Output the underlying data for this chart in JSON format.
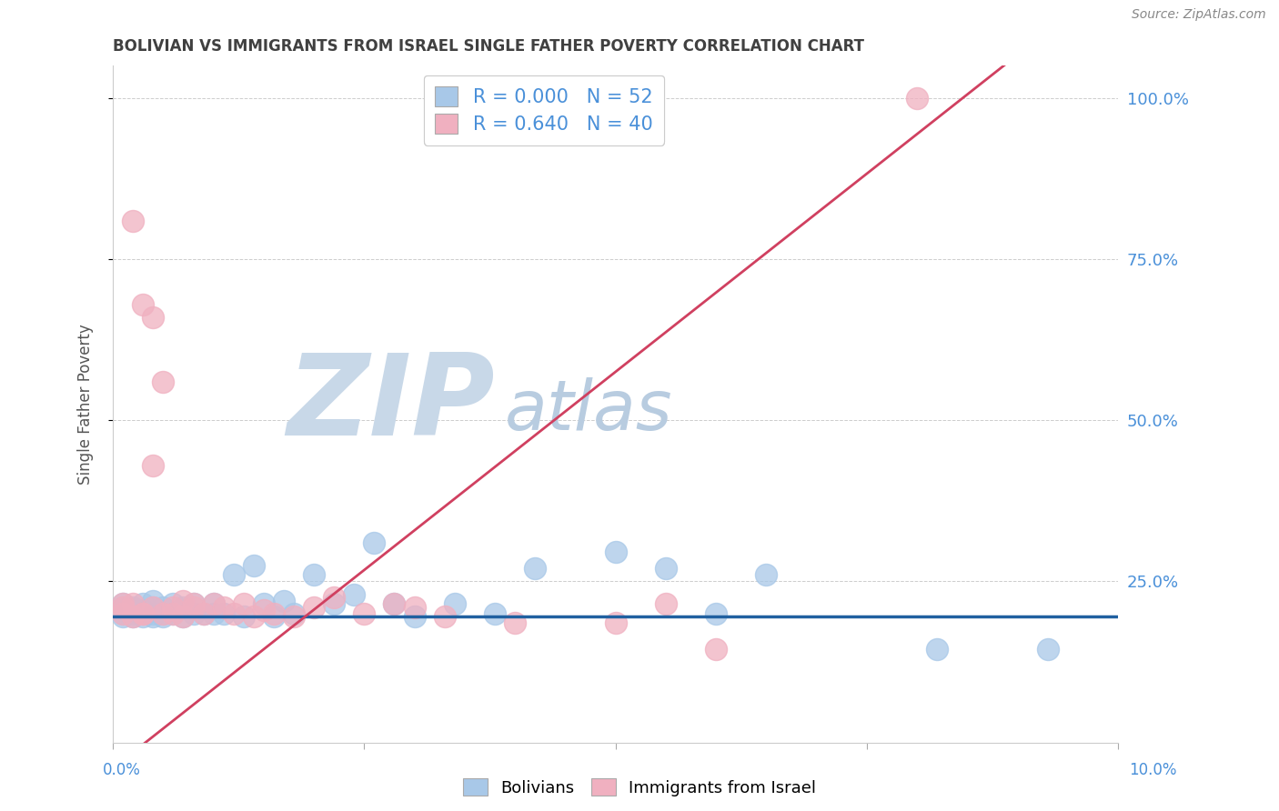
{
  "title": "BOLIVIAN VS IMMIGRANTS FROM ISRAEL SINGLE FATHER POVERTY CORRELATION CHART",
  "source": "Source: ZipAtlas.com",
  "ylabel": "Single Father Poverty",
  "legend_bottom": [
    "Bolivians",
    "Immigrants from Israel"
  ],
  "legend_top": {
    "blue": {
      "R": "0.000",
      "N": "52"
    },
    "pink": {
      "R": "0.640",
      "N": "40"
    }
  },
  "blue_color": "#a8c8e8",
  "pink_color": "#f0b0c0",
  "blue_line_color": "#2060a0",
  "pink_line_color": "#d04060",
  "watermark_zip_color": "#c8d8e8",
  "watermark_atlas_color": "#b8cce0",
  "title_color": "#404040",
  "axis_label_color": "#4a90d9",
  "xmin": 0.0,
  "xmax": 0.1,
  "ymin": 0.0,
  "ymax": 1.05,
  "blue_scatter_x": [
    0.001,
    0.001,
    0.001,
    0.001,
    0.001,
    0.002,
    0.002,
    0.002,
    0.002,
    0.003,
    0.003,
    0.003,
    0.003,
    0.004,
    0.004,
    0.004,
    0.004,
    0.005,
    0.005,
    0.005,
    0.006,
    0.006,
    0.007,
    0.007,
    0.008,
    0.008,
    0.009,
    0.01,
    0.01,
    0.011,
    0.012,
    0.013,
    0.014,
    0.015,
    0.016,
    0.017,
    0.018,
    0.02,
    0.022,
    0.024,
    0.026,
    0.028,
    0.03,
    0.034,
    0.038,
    0.042,
    0.05,
    0.055,
    0.06,
    0.065,
    0.082,
    0.093
  ],
  "blue_scatter_y": [
    0.195,
    0.2,
    0.205,
    0.21,
    0.215,
    0.195,
    0.2,
    0.205,
    0.21,
    0.195,
    0.2,
    0.205,
    0.215,
    0.195,
    0.2,
    0.21,
    0.22,
    0.195,
    0.2,
    0.21,
    0.2,
    0.215,
    0.195,
    0.21,
    0.2,
    0.215,
    0.2,
    0.2,
    0.215,
    0.2,
    0.26,
    0.195,
    0.275,
    0.215,
    0.195,
    0.22,
    0.2,
    0.26,
    0.215,
    0.23,
    0.31,
    0.215,
    0.195,
    0.215,
    0.2,
    0.27,
    0.295,
    0.27,
    0.2,
    0.26,
    0.145,
    0.145
  ],
  "pink_scatter_x": [
    0.001,
    0.001,
    0.001,
    0.002,
    0.002,
    0.002,
    0.003,
    0.003,
    0.003,
    0.004,
    0.004,
    0.004,
    0.005,
    0.005,
    0.006,
    0.006,
    0.007,
    0.007,
    0.008,
    0.008,
    0.009,
    0.01,
    0.011,
    0.012,
    0.013,
    0.014,
    0.015,
    0.016,
    0.018,
    0.02,
    0.022,
    0.025,
    0.028,
    0.03,
    0.033,
    0.04,
    0.05,
    0.055,
    0.06,
    0.08
  ],
  "pink_scatter_y": [
    0.2,
    0.21,
    0.215,
    0.195,
    0.81,
    0.215,
    0.2,
    0.68,
    0.2,
    0.21,
    0.66,
    0.43,
    0.2,
    0.56,
    0.21,
    0.2,
    0.22,
    0.195,
    0.21,
    0.215,
    0.2,
    0.215,
    0.21,
    0.2,
    0.215,
    0.195,
    0.205,
    0.2,
    0.195,
    0.21,
    0.225,
    0.2,
    0.215,
    0.21,
    0.195,
    0.185,
    0.185,
    0.215,
    0.145,
    1.0
  ],
  "blue_trend_y": 0.195,
  "pink_trend_slope": 12.3,
  "pink_trend_intercept": -0.04,
  "ytick_labels": [
    "25.0%",
    "50.0%",
    "75.0%",
    "100.0%"
  ],
  "ytick_vals": [
    0.25,
    0.5,
    0.75,
    1.0
  ]
}
